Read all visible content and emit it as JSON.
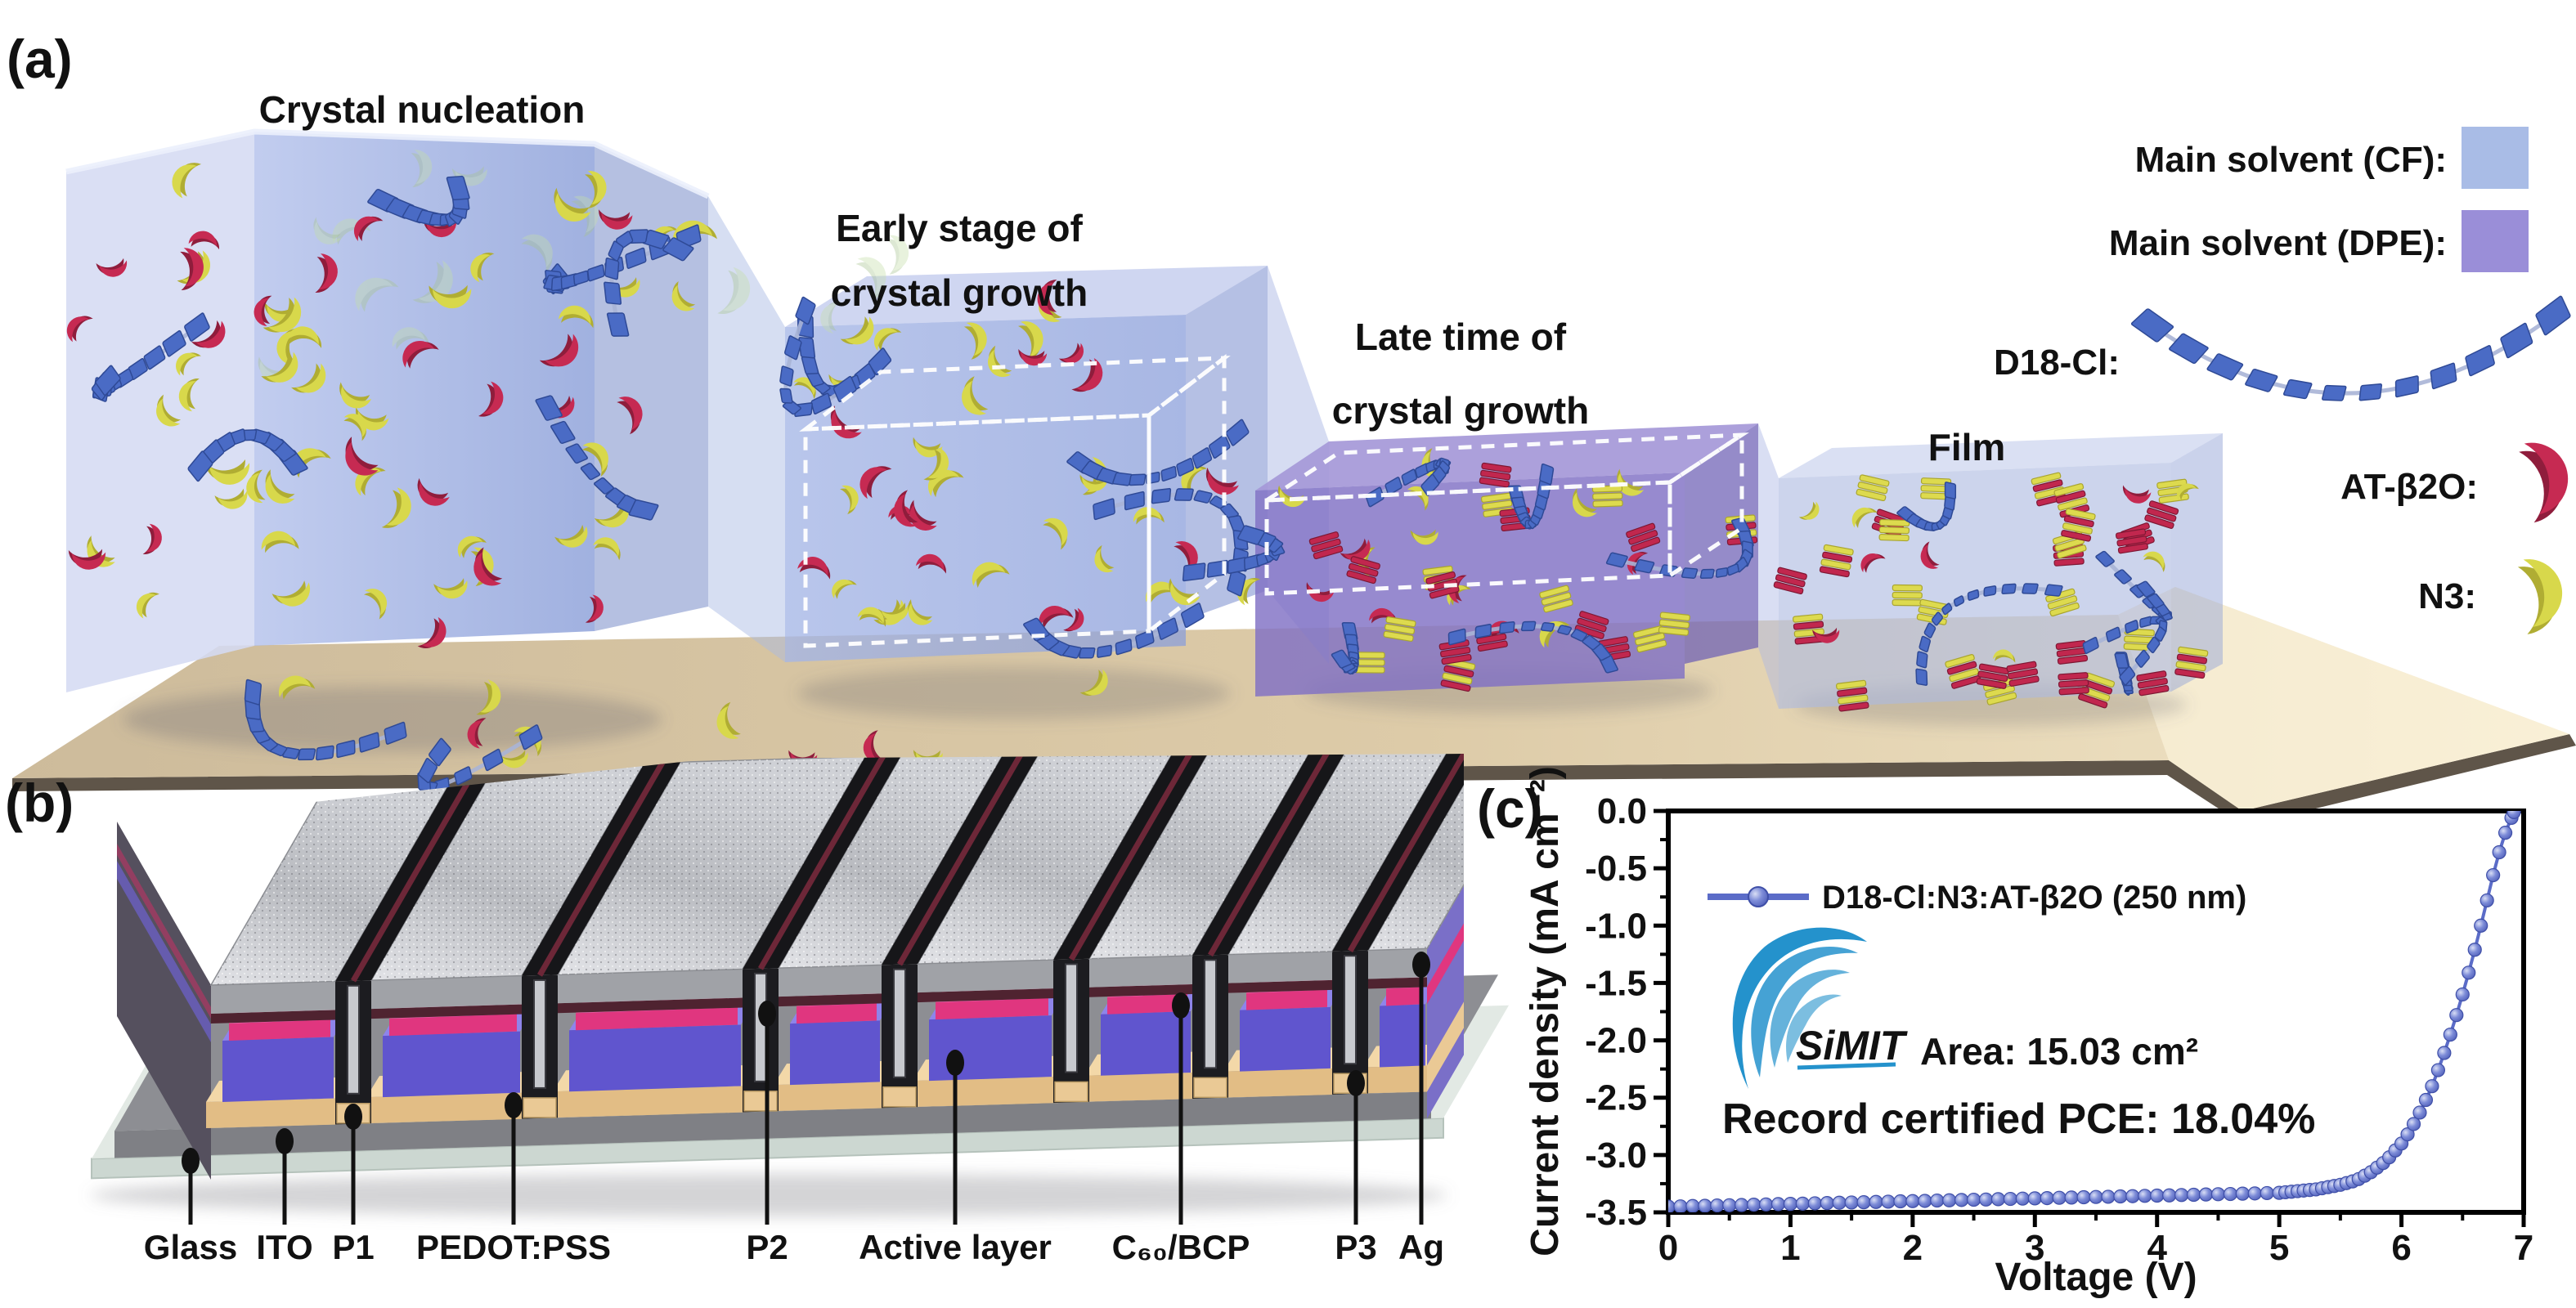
{
  "figure": {
    "panel_a": {
      "label": "(a)",
      "stage_titles": [
        {
          "lines": [
            "Crystal nucleation",
            ""
          ]
        },
        {
          "lines": [
            "Early stage of",
            "crystal growth"
          ]
        },
        {
          "lines": [
            "Late time of",
            "crystal growth"
          ]
        },
        {
          "lines": [
            "Film",
            ""
          ]
        }
      ],
      "legend": {
        "items": [
          {
            "label": "Main solvent (CF):",
            "glyph": "cf-swatch",
            "swatch_color": "#a9bce6"
          },
          {
            "label": "Main solvent (DPE):",
            "glyph": "dpe-swatch",
            "swatch_color": "#9a8ed8"
          },
          {
            "label": "D18-Cl:",
            "glyph": "polymer-chain",
            "swatch_color": "#4a6bc5"
          },
          {
            "label": "AT-β2O:",
            "glyph": "red-crescent",
            "swatch_color": "#c62a52"
          },
          {
            "label": "N3:",
            "glyph": "yellow-crescent",
            "swatch_color": "#d8d84b"
          }
        ]
      }
    },
    "panel_b": {
      "label": "(b)",
      "layers": [
        {
          "label": "Glass"
        },
        {
          "label": "ITO"
        },
        {
          "label": "P1"
        },
        {
          "label": "PEDOT:PSS"
        },
        {
          "label": "P2"
        },
        {
          "label": "Active layer"
        },
        {
          "label": "C₆₀/BCP"
        },
        {
          "label": "P3"
        },
        {
          "label": "Ag"
        }
      ]
    },
    "panel_c": {
      "label": "(c)",
      "chart_data": {
        "type": "line",
        "title": "",
        "xlabel": "Voltage (V)",
        "ylabel": "Current density (mA cm⁻²)",
        "xlim": [
          0,
          7
        ],
        "ylim": [
          -3.5,
          0
        ],
        "grid": false,
        "legend_position": "top-left",
        "x_ticks": [
          0,
          1,
          2,
          3,
          4,
          5,
          6,
          7
        ],
        "x_tick_labels": [
          "0",
          "1",
          "2",
          "3",
          "4",
          "5",
          "6",
          "7"
        ],
        "y_ticks": [
          0,
          -0.5,
          -1,
          -1.5,
          -2,
          -2.5,
          -3,
          -3.5
        ],
        "y_tick_labels": [
          "0.0",
          "-0.5",
          "-1.0",
          "-1.5",
          "-2.0",
          "-2.5",
          "-3.0",
          "-3.5"
        ],
        "logo_text": "SiMIT",
        "annotations": [
          {
            "text": "Area: 15.03 cm²",
            "color": "#111111"
          },
          {
            "text": "Record certified PCE: 18.04%",
            "color": "#b3202c"
          }
        ],
        "series": [
          {
            "name": "D18-Cl:N3:AT-β2O (250 nm)",
            "color": "#5b6cc8",
            "marker": "circle",
            "points": [
              [
                0,
                -3.45
              ],
              [
                0.1,
                -3.448
              ],
              [
                0.2,
                -3.445
              ],
              [
                0.3,
                -3.443
              ],
              [
                0.4,
                -3.44
              ],
              [
                0.5,
                -3.438
              ],
              [
                0.6,
                -3.436
              ],
              [
                0.7,
                -3.433
              ],
              [
                0.8,
                -3.431
              ],
              [
                0.9,
                -3.428
              ],
              [
                1,
                -3.426
              ],
              [
                1.1,
                -3.424
              ],
              [
                1.2,
                -3.421
              ],
              [
                1.3,
                -3.419
              ],
              [
                1.4,
                -3.416
              ],
              [
                1.5,
                -3.414
              ],
              [
                1.6,
                -3.412
              ],
              [
                1.7,
                -3.409
              ],
              [
                1.8,
                -3.407
              ],
              [
                1.9,
                -3.404
              ],
              [
                2,
                -3.402
              ],
              [
                2.1,
                -3.4
              ],
              [
                2.2,
                -3.397
              ],
              [
                2.3,
                -3.395
              ],
              [
                2.4,
                -3.392
              ],
              [
                2.5,
                -3.39
              ],
              [
                2.6,
                -3.388
              ],
              [
                2.7,
                -3.385
              ],
              [
                2.8,
                -3.383
              ],
              [
                2.9,
                -3.38
              ],
              [
                3,
                -3.378
              ],
              [
                3.1,
                -3.376
              ],
              [
                3.2,
                -3.373
              ],
              [
                3.3,
                -3.371
              ],
              [
                3.4,
                -3.368
              ],
              [
                3.5,
                -3.366
              ],
              [
                3.6,
                -3.364
              ],
              [
                3.7,
                -3.361
              ],
              [
                3.8,
                -3.359
              ],
              [
                3.9,
                -3.356
              ],
              [
                4,
                -3.354
              ],
              [
                4.1,
                -3.352
              ],
              [
                4.2,
                -3.349
              ],
              [
                4.3,
                -3.347
              ],
              [
                4.4,
                -3.344
              ],
              [
                4.5,
                -3.342
              ],
              [
                4.6,
                -3.34
              ],
              [
                4.7,
                -3.337
              ],
              [
                4.8,
                -3.335
              ],
              [
                4.9,
                -3.332
              ],
              [
                5,
                -3.33
              ],
              [
                5.05,
                -3.325
              ],
              [
                5.1,
                -3.32
              ],
              [
                5.15,
                -3.315
              ],
              [
                5.2,
                -3.31
              ],
              [
                5.25,
                -3.305
              ],
              [
                5.3,
                -3.3
              ],
              [
                5.35,
                -3.29
              ],
              [
                5.4,
                -3.28
              ],
              [
                5.45,
                -3.27
              ],
              [
                5.5,
                -3.26
              ],
              [
                5.55,
                -3.245
              ],
              [
                5.6,
                -3.23
              ],
              [
                5.65,
                -3.21
              ],
              [
                5.7,
                -3.18
              ],
              [
                5.75,
                -3.15
              ],
              [
                5.8,
                -3.11
              ],
              [
                5.85,
                -3.07
              ],
              [
                5.9,
                -3.02
              ],
              [
                5.95,
                -2.96
              ],
              [
                6,
                -2.9
              ],
              [
                6.05,
                -2.82
              ],
              [
                6.1,
                -2.73
              ],
              [
                6.15,
                -2.63
              ],
              [
                6.2,
                -2.52
              ],
              [
                6.25,
                -2.4
              ],
              [
                6.3,
                -2.26
              ],
              [
                6.35,
                -2.11
              ],
              [
                6.4,
                -1.95
              ],
              [
                6.45,
                -1.78
              ],
              [
                6.5,
                -1.6
              ],
              [
                6.55,
                -1.41
              ],
              [
                6.6,
                -1.21
              ],
              [
                6.65,
                -1
              ],
              [
                6.7,
                -0.78
              ],
              [
                6.75,
                -0.56
              ],
              [
                6.8,
                -0.36
              ],
              [
                6.85,
                -0.19
              ],
              [
                6.9,
                -0.06
              ],
              [
                6.92,
                -0.01
              ]
            ]
          }
        ]
      }
    },
    "colors": {
      "curve_blue": "#5b6cc8",
      "pce_red": "#b3202c",
      "simit_blue": "#2492cc",
      "d18_blue": "#4a6bc5",
      "at_b2o_red": "#c62a52",
      "n3_yellow": "#d8d84b",
      "cf_swatch": "#a9bce6",
      "dpe_swatch": "#9a8ed8"
    }
  }
}
